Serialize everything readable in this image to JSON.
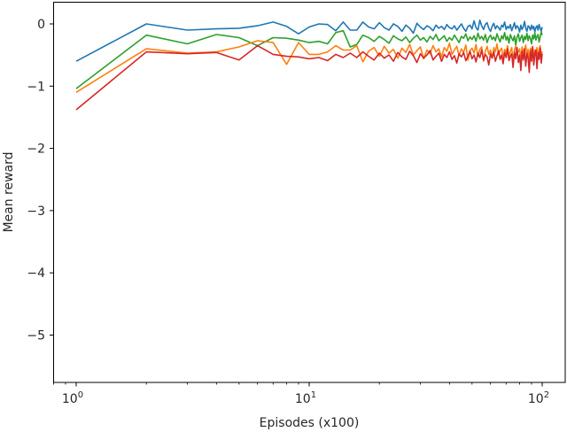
{
  "chart_data": {
    "type": "line",
    "title": "",
    "xlabel": "Episodes (x100)",
    "ylabel": "Mean reward",
    "xscale": "log",
    "xlim": [
      0.8,
      125
    ],
    "ylim": [
      -5.77,
      0.34
    ],
    "xticks": [
      {
        "value": 1,
        "label": "10",
        "exp": "0"
      },
      {
        "value": 10,
        "label": "10",
        "exp": "1"
      },
      {
        "value": 100,
        "label": "10",
        "exp": "2"
      }
    ],
    "yticks": [
      0,
      -1,
      -2,
      -3,
      -4,
      -5
    ],
    "ytick_labels": [
      "0",
      "−1",
      "−2",
      "−3",
      "−4",
      "−5"
    ],
    "grid": false,
    "legend": null,
    "x_start": 1,
    "x_step": 1,
    "series": [
      {
        "name": "blue",
        "color": "#1f77b4",
        "values": [
          -0.6,
          0.0,
          -0.1,
          -0.08,
          -0.07,
          -0.03,
          0.03,
          -0.04,
          -0.16,
          -0.05,
          0.0,
          -0.01,
          -0.11,
          0.03,
          -0.1,
          -0.1,
          0.03,
          -0.05,
          -0.08,
          0.02,
          -0.06,
          -0.1,
          0.0,
          -0.04,
          -0.12,
          -0.02,
          -0.07,
          -0.15,
          0.01,
          -0.05,
          -0.09,
          -0.03,
          -0.06,
          -0.11,
          -0.02,
          -0.07,
          -0.04,
          -0.09,
          -0.01,
          -0.06,
          -0.08,
          -0.03,
          -0.1,
          -0.05,
          0.0,
          -0.07,
          -0.12,
          -0.04,
          -0.02,
          -0.08,
          0.05,
          -0.06,
          -0.1,
          0.06,
          -0.03,
          -0.09,
          -0.01,
          0.02,
          -0.07,
          -0.12,
          -0.04,
          0.01,
          -0.08,
          -0.03,
          -0.06,
          -0.1,
          -0.02,
          -0.05,
          0.03,
          -0.09,
          -0.04,
          -0.07,
          -0.01,
          -0.11,
          -0.05,
          0.02,
          -0.08,
          -0.03,
          -0.06,
          -0.13,
          -0.02,
          -0.09,
          -0.04,
          0.04,
          -0.07,
          -0.12,
          -0.03,
          -0.05,
          -0.1,
          -0.02,
          -0.08,
          -0.04,
          -0.13,
          -0.06,
          -0.03,
          -0.1,
          -0.01,
          -0.07,
          -0.12,
          -0.05
        ]
      },
      {
        "name": "green",
        "color": "#2ca02c",
        "values": [
          -1.04,
          -0.18,
          -0.32,
          -0.17,
          -0.22,
          -0.35,
          -0.22,
          -0.23,
          -0.26,
          -0.3,
          -0.28,
          -0.32,
          -0.14,
          -0.11,
          -0.37,
          -0.33,
          -0.18,
          -0.22,
          -0.28,
          -0.2,
          -0.25,
          -0.31,
          -0.19,
          -0.24,
          -0.27,
          -0.21,
          -0.3,
          -0.23,
          -0.18,
          -0.26,
          -0.22,
          -0.29,
          -0.2,
          -0.25,
          -0.17,
          -0.27,
          -0.23,
          -0.19,
          -0.28,
          -0.22,
          -0.26,
          -0.18,
          -0.24,
          -0.3,
          -0.2,
          -0.23,
          -0.16,
          -0.27,
          -0.21,
          -0.25,
          -0.19,
          -0.28,
          -0.15,
          -0.24,
          -0.2,
          -0.26,
          -0.17,
          -0.3,
          -0.22,
          -0.18,
          -0.25,
          -0.21,
          -0.27,
          -0.16,
          -0.23,
          -0.29,
          -0.19,
          -0.24,
          -0.14,
          -0.26,
          -0.2,
          -0.31,
          -0.17,
          -0.23,
          -0.27,
          -0.19,
          -0.34,
          -0.21,
          -0.16,
          -0.28,
          -0.22,
          -0.18,
          -0.3,
          -0.2,
          -0.25,
          -0.15,
          -0.27,
          -0.19,
          -0.23,
          -0.32,
          -0.18,
          -0.24,
          -0.14,
          -0.26,
          -0.2,
          -0.17,
          -0.29,
          -0.21,
          -0.13,
          -0.18
        ]
      },
      {
        "name": "orange",
        "color": "#ff7f0e",
        "values": [
          -1.1,
          -0.4,
          -0.47,
          -0.45,
          -0.37,
          -0.27,
          -0.3,
          -0.65,
          -0.3,
          -0.49,
          -0.49,
          -0.45,
          -0.35,
          -0.42,
          -0.42,
          -0.35,
          -0.61,
          -0.44,
          -0.38,
          -0.52,
          -0.36,
          -0.47,
          -0.41,
          -0.55,
          -0.39,
          -0.46,
          -0.33,
          -0.5,
          -0.43,
          -0.37,
          -0.56,
          -0.42,
          -0.48,
          -0.35,
          -0.45,
          -0.4,
          -0.53,
          -0.38,
          -0.44,
          -0.31,
          -0.49,
          -0.42,
          -0.36,
          -0.51,
          -0.4,
          -0.46,
          -0.34,
          -0.58,
          -0.43,
          -0.39,
          -0.47,
          -0.33,
          -0.52,
          -0.41,
          -0.37,
          -0.6,
          -0.44,
          -0.36,
          -0.49,
          -0.42,
          -0.55,
          -0.38,
          -0.45,
          -0.32,
          -0.5,
          -0.43,
          -0.39,
          -0.57,
          -0.41,
          -0.47,
          -0.35,
          -0.53,
          -0.44,
          -0.38,
          -0.62,
          -0.42,
          -0.36,
          -0.49,
          -0.45,
          -0.4,
          -0.56,
          -0.37,
          -0.46,
          -0.43,
          -0.34,
          -0.51,
          -0.41,
          -0.59,
          -0.39,
          -0.45,
          -0.36,
          -0.52,
          -0.42,
          -0.48,
          -0.38,
          -0.55,
          -0.41,
          -0.35,
          -0.5,
          -0.44
        ]
      },
      {
        "name": "red",
        "color": "#d62728",
        "values": [
          -1.38,
          -0.45,
          -0.48,
          -0.46,
          -0.58,
          -0.35,
          -0.49,
          -0.52,
          -0.53,
          -0.56,
          -0.54,
          -0.59,
          -0.49,
          -0.54,
          -0.47,
          -0.54,
          -0.45,
          -0.52,
          -0.58,
          -0.47,
          -0.55,
          -0.5,
          -0.6,
          -0.46,
          -0.53,
          -0.57,
          -0.44,
          -0.51,
          -0.62,
          -0.48,
          -0.55,
          -0.5,
          -0.43,
          -0.58,
          -0.52,
          -0.47,
          -0.6,
          -0.49,
          -0.54,
          -0.45,
          -0.57,
          -0.51,
          -0.63,
          -0.48,
          -0.53,
          -0.46,
          -0.59,
          -0.52,
          -0.44,
          -0.56,
          -0.5,
          -0.61,
          -0.47,
          -0.54,
          -0.42,
          -0.58,
          -0.49,
          -0.53,
          -0.66,
          -0.48,
          -0.55,
          -0.45,
          -0.6,
          -0.51,
          -0.43,
          -0.57,
          -0.5,
          -0.64,
          -0.46,
          -0.54,
          -0.4,
          -0.59,
          -0.52,
          -0.48,
          -0.7,
          -0.45,
          -0.56,
          -0.38,
          -0.62,
          -0.5,
          -0.75,
          -0.44,
          -0.58,
          -0.4,
          -0.68,
          -0.47,
          -0.55,
          -0.78,
          -0.43,
          -0.6,
          -0.37,
          -0.66,
          -0.49,
          -0.42,
          -0.72,
          -0.46,
          -0.57,
          -0.39,
          -0.63,
          -0.48
        ]
      }
    ]
  }
}
